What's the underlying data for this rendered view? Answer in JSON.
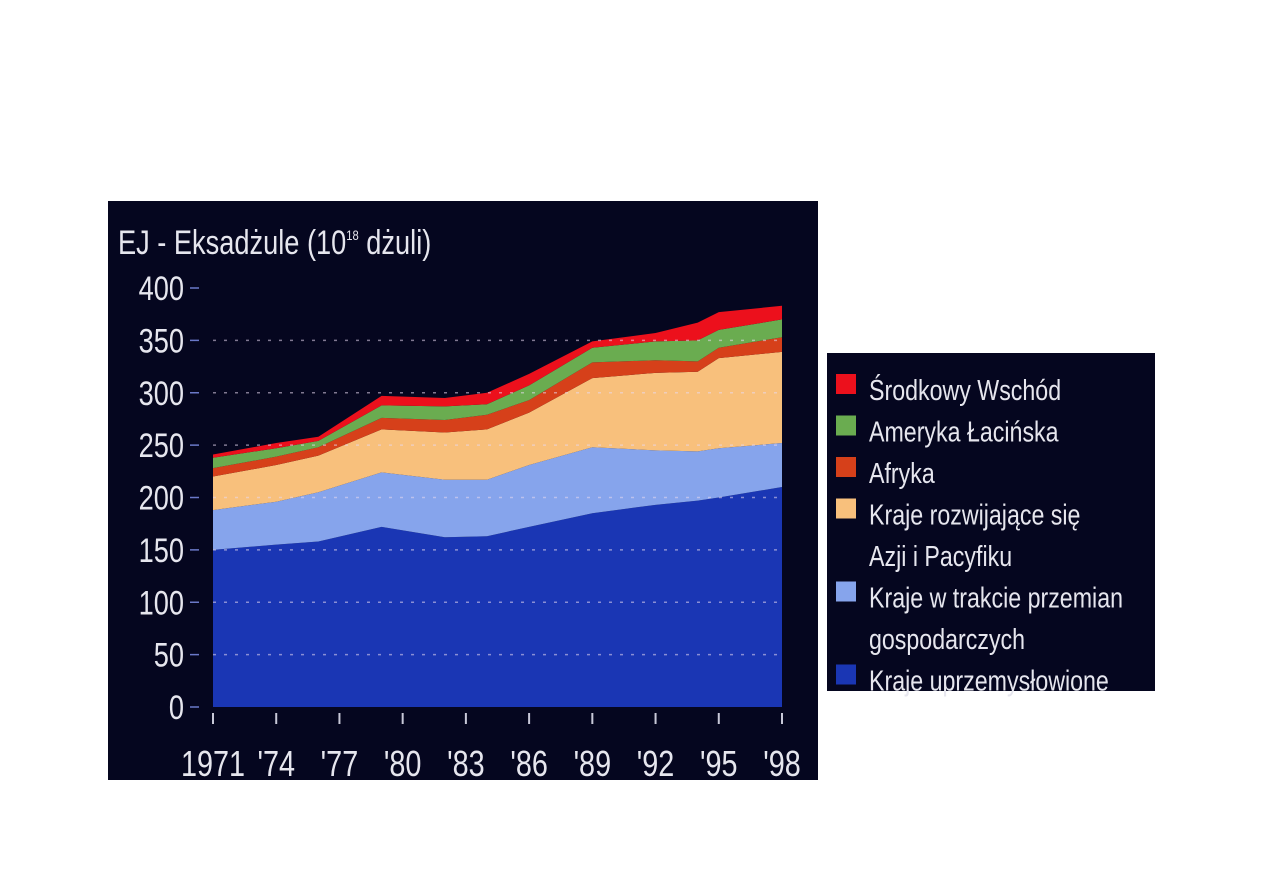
{
  "chart_data": {
    "type": "area",
    "stacked": true,
    "title": "EJ - Eksadżule (10¹⁸ dżuli)",
    "title_parts": {
      "main": "EJ - Eksadżule (10",
      "sup": "18",
      "tail": " dżuli)"
    },
    "xlabel": "",
    "ylabel": "",
    "ylim": [
      0,
      400
    ],
    "yticks": [
      "0",
      "50",
      "100",
      "150",
      "200",
      "250",
      "300",
      "350",
      "400"
    ],
    "xlim": [
      1971,
      1998
    ],
    "xtick_years": [
      1971,
      1974,
      1977,
      1980,
      1983,
      1986,
      1989,
      1992,
      1995,
      1998
    ],
    "xtick_labels": [
      "1971",
      "'74",
      "'77",
      "'80",
      "'83",
      "'86",
      "'89",
      "'92",
      "'95",
      "'98"
    ],
    "grid": true,
    "legend_position": "right",
    "background": "#05061f",
    "x": [
      1971,
      1974,
      1976,
      1979,
      1982,
      1984,
      1986,
      1989,
      1992,
      1994,
      1995,
      1998
    ],
    "series": [
      {
        "name": "Kraje uprzemysłowione",
        "color": "#1a36b4",
        "values": [
          150,
          155,
          158,
          172,
          162,
          163,
          172,
          185,
          193,
          197,
          200,
          210
        ]
      },
      {
        "name": "Kraje w trakcie przemian\ngospodarczych",
        "color": "#86a4ec",
        "values": [
          38,
          41,
          47,
          52,
          55,
          54,
          59,
          63,
          52,
          47,
          47,
          42
        ]
      },
      {
        "name": "Kraje rozwijające się\nAzji i Pacyfiku",
        "color": "#f8c07c",
        "values": [
          32,
          35,
          35,
          41,
          45,
          48,
          50,
          66,
          74,
          76,
          86,
          87
        ]
      },
      {
        "name": "Afryka",
        "color": "#d6401a",
        "values": [
          8,
          8,
          8,
          11,
          12,
          14,
          12,
          15,
          12,
          10,
          10,
          14
        ]
      },
      {
        "name": "Ameryka Łacińska",
        "color": "#6aac50",
        "values": [
          10,
          8,
          6,
          12,
          13,
          10,
          14,
          14,
          18,
          20,
          17,
          17
        ]
      },
      {
        "name": "Środkowy Wschód",
        "color": "#ec101c",
        "values": [
          3,
          5,
          4,
          9,
          8,
          11,
          11,
          6,
          8,
          17,
          17,
          13
        ]
      }
    ]
  }
}
